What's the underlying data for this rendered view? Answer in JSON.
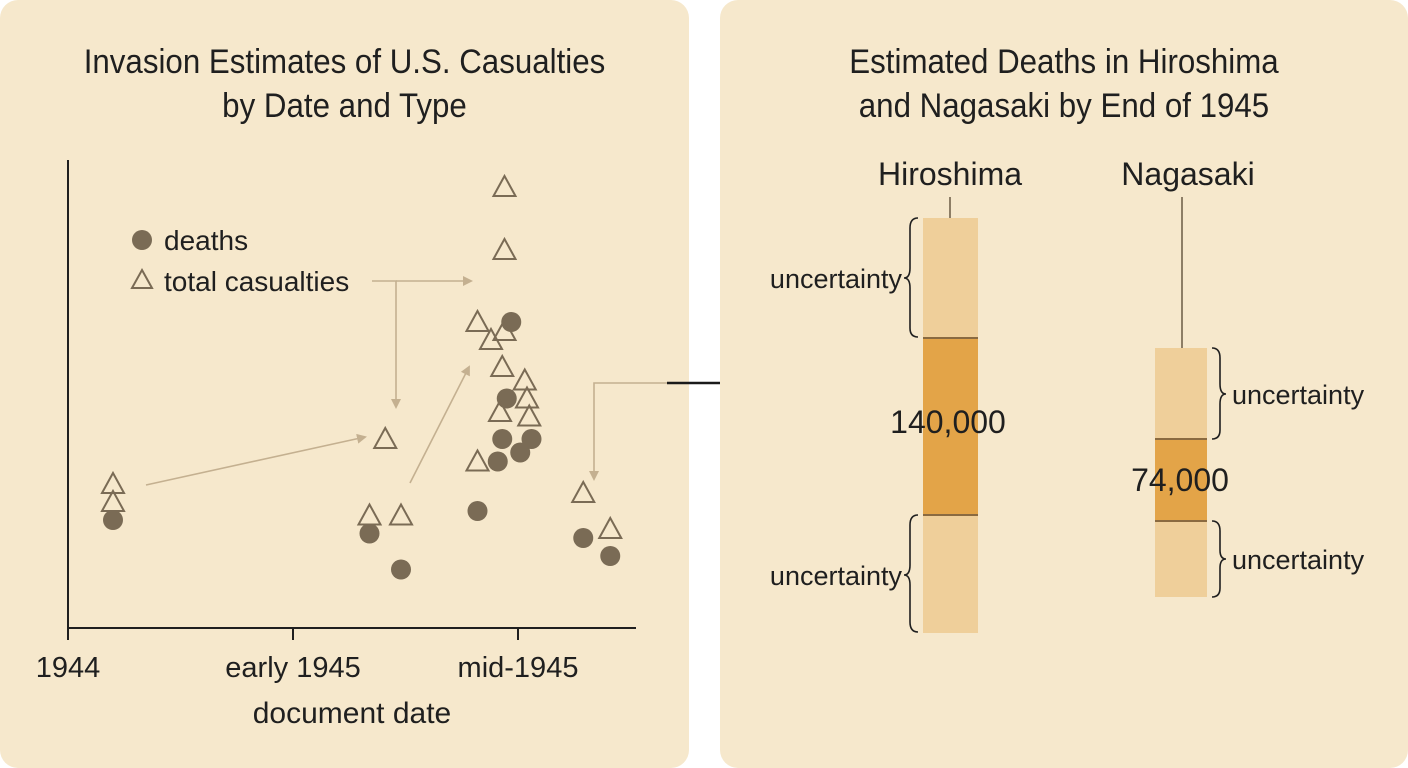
{
  "colors": {
    "background": "#f6e8cc",
    "marker": "#7a6b55",
    "arrow": "#c4b090",
    "light_band": "#efcf9a",
    "dark_band": "#e3a448",
    "divider": "#8a6a40"
  },
  "chart_data": [
    {
      "type": "scatter",
      "title_lines": [
        "Invasion Estimates of U.S. Casualties",
        "by Date and Type"
      ],
      "xlabel": "document date",
      "ylabel": "",
      "x_ticks": [
        "1944",
        "early 1945",
        "mid-1945"
      ],
      "y_axis": "unlabeled",
      "grid": false,
      "legend_placement": "upper-left",
      "series": [
        {
          "name": "deaths",
          "marker": "filled-circle",
          "points": [
            {
              "x": 0.2,
              "y": 0.24
            },
            {
              "x": 1.34,
              "y": 0.21
            },
            {
              "x": 1.48,
              "y": 0.13
            },
            {
              "x": 1.82,
              "y": 0.26
            },
            {
              "x": 1.91,
              "y": 0.37
            },
            {
              "x": 1.93,
              "y": 0.42
            },
            {
              "x": 1.95,
              "y": 0.51
            },
            {
              "x": 1.97,
              "y": 0.68
            },
            {
              "x": 2.01,
              "y": 0.39
            },
            {
              "x": 2.06,
              "y": 0.42
            },
            {
              "x": 2.29,
              "y": 0.2
            },
            {
              "x": 2.41,
              "y": 0.16
            }
          ]
        },
        {
          "name": "total casualties",
          "marker": "open-triangle",
          "points": [
            {
              "x": 0.2,
              "y": 0.32
            },
            {
              "x": 0.2,
              "y": 0.28
            },
            {
              "x": 1.34,
              "y": 0.25
            },
            {
              "x": 1.41,
              "y": 0.42
            },
            {
              "x": 1.48,
              "y": 0.25
            },
            {
              "x": 1.82,
              "y": 0.37
            },
            {
              "x": 1.82,
              "y": 0.68
            },
            {
              "x": 1.88,
              "y": 0.64
            },
            {
              "x": 1.92,
              "y": 0.48
            },
            {
              "x": 1.94,
              "y": 0.66
            },
            {
              "x": 1.93,
              "y": 0.58
            },
            {
              "x": 1.94,
              "y": 0.84
            },
            {
              "x": 1.94,
              "y": 0.98
            },
            {
              "x": 2.03,
              "y": 0.55
            },
            {
              "x": 2.05,
              "y": 0.47
            },
            {
              "x": 2.04,
              "y": 0.51
            },
            {
              "x": 2.29,
              "y": 0.3
            },
            {
              "x": 2.41,
              "y": 0.22
            }
          ]
        }
      ]
    },
    {
      "type": "bar",
      "title_lines": [
        "Estimated Deaths in Hiroshima",
        "and Nagasaki by End of 1945"
      ],
      "categories": [
        "Hiroshima",
        "Nagasaki"
      ],
      "values": [
        "140,000",
        "74,000"
      ],
      "band_labels": {
        "Hiroshima": [
          "uncertainty",
          "uncertainty"
        ],
        "Nagasaki": [
          "uncertainty",
          "uncertainty"
        ]
      }
    }
  ]
}
